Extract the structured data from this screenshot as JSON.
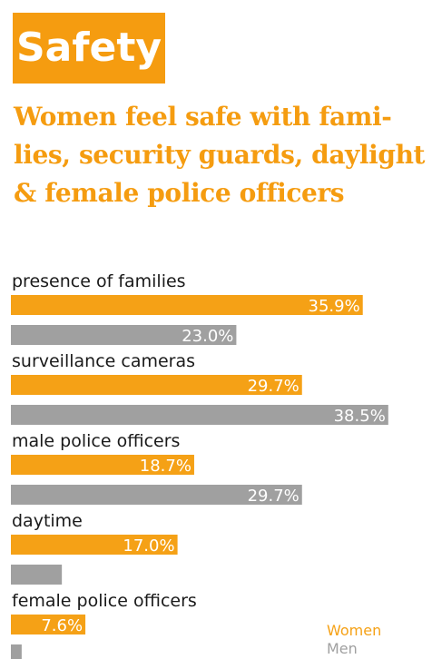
{
  "section": {
    "label": "Safety"
  },
  "headline": "Women feel safe with fami- lies, security guards, daylight & female police officers",
  "colors": {
    "women": "#f5a116",
    "men": "#a0a0a0",
    "badge_bg": "#f59c10",
    "headline": "#f59c10"
  },
  "chart_data": {
    "type": "bar",
    "orientation": "horizontal",
    "categories": [
      "presence of families",
      "surveillance cameras",
      "male police officers",
      "daytime",
      "female police officers"
    ],
    "series": [
      {
        "name": "Women",
        "values": [
          35.9,
          29.7,
          18.7,
          17.0,
          7.6
        ],
        "labels": [
          "35.9%",
          "29.7%",
          "18.7%",
          "17.0%",
          "7.6%"
        ]
      },
      {
        "name": "Men",
        "values": [
          23.0,
          38.5,
          29.7,
          5.2,
          1.1
        ],
        "labels": [
          "23.0%",
          "38.5%",
          "29.7%",
          "5.2%",
          "1.1%"
        ]
      }
    ],
    "legend": [
      "Women",
      "Men"
    ],
    "legend_position": "bottom-right",
    "unit": "%"
  }
}
